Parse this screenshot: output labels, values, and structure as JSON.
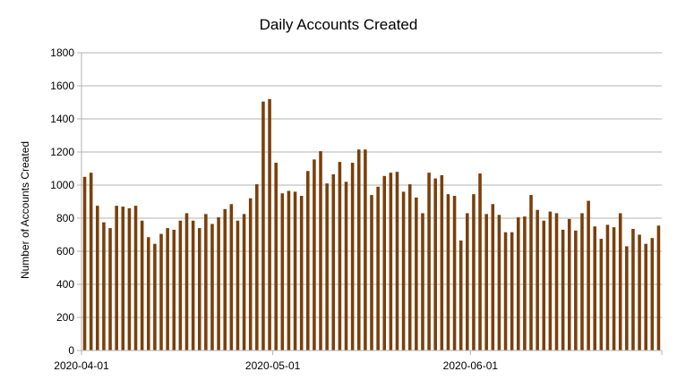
{
  "chart_data": {
    "type": "bar",
    "title": "Daily Accounts Created",
    "xlabel": "",
    "ylabel": "Number of Accounts Created",
    "ylim": [
      0,
      1800
    ],
    "yticks": [
      0,
      200,
      400,
      600,
      800,
      1000,
      1200,
      1400,
      1600,
      1800
    ],
    "grid": "horizontal",
    "legend": "none",
    "bar_color": "#7b3f0a",
    "x_start": "2020-04-01",
    "x_ticks": [
      {
        "label": "2020-04-01",
        "date": "2020-04-01"
      },
      {
        "label": "2020-05-01",
        "date": "2020-05-01"
      },
      {
        "label": "2020-06-01",
        "date": "2020-06-01"
      }
    ],
    "dates": [
      "2020-04-01",
      "2020-04-02",
      "2020-04-03",
      "2020-04-04",
      "2020-04-05",
      "2020-04-06",
      "2020-04-07",
      "2020-04-08",
      "2020-04-09",
      "2020-04-10",
      "2020-04-11",
      "2020-04-12",
      "2020-04-13",
      "2020-04-14",
      "2020-04-15",
      "2020-04-16",
      "2020-04-17",
      "2020-04-18",
      "2020-04-19",
      "2020-04-20",
      "2020-04-21",
      "2020-04-22",
      "2020-04-23",
      "2020-04-24",
      "2020-04-25",
      "2020-04-26",
      "2020-04-27",
      "2020-04-28",
      "2020-04-29",
      "2020-04-30",
      "2020-05-01",
      "2020-05-02",
      "2020-05-03",
      "2020-05-04",
      "2020-05-05",
      "2020-05-06",
      "2020-05-07",
      "2020-05-08",
      "2020-05-09",
      "2020-05-10",
      "2020-05-11",
      "2020-05-12",
      "2020-05-13",
      "2020-05-14",
      "2020-05-15",
      "2020-05-16",
      "2020-05-17",
      "2020-05-18",
      "2020-05-19",
      "2020-05-20",
      "2020-05-21",
      "2020-05-22",
      "2020-05-23",
      "2020-05-24",
      "2020-05-25",
      "2020-05-26",
      "2020-05-27",
      "2020-05-28",
      "2020-05-29",
      "2020-05-30",
      "2020-05-31",
      "2020-06-01",
      "2020-06-02",
      "2020-06-03",
      "2020-06-04",
      "2020-06-05",
      "2020-06-06",
      "2020-06-07",
      "2020-06-08",
      "2020-06-09",
      "2020-06-10",
      "2020-06-11",
      "2020-06-12",
      "2020-06-13",
      "2020-06-14",
      "2020-06-15",
      "2020-06-16",
      "2020-06-17",
      "2020-06-18",
      "2020-06-19",
      "2020-06-20",
      "2020-06-21",
      "2020-06-22",
      "2020-06-23",
      "2020-06-24",
      "2020-06-25",
      "2020-06-26",
      "2020-06-27",
      "2020-06-28",
      "2020-06-29",
      "2020-06-30"
    ],
    "values": [
      1050,
      1075,
      875,
      775,
      740,
      875,
      870,
      860,
      875,
      785,
      685,
      645,
      705,
      740,
      730,
      785,
      830,
      785,
      740,
      825,
      765,
      805,
      855,
      885,
      785,
      825,
      920,
      1005,
      1505,
      1520,
      1135,
      950,
      965,
      960,
      935,
      1085,
      1155,
      1205,
      1010,
      1065,
      1140,
      1020,
      1135,
      1215,
      1215,
      940,
      990,
      1055,
      1075,
      1080,
      960,
      1005,
      925,
      830,
      1075,
      1040,
      1060,
      945,
      935,
      665,
      830,
      945,
      1070,
      825,
      885,
      820,
      715,
      715,
      805,
      810,
      940,
      850,
      785,
      840,
      830,
      730,
      795,
      725,
      830,
      905,
      750,
      675,
      760,
      745,
      830,
      630,
      735,
      700,
      645,
      680,
      755
    ]
  }
}
